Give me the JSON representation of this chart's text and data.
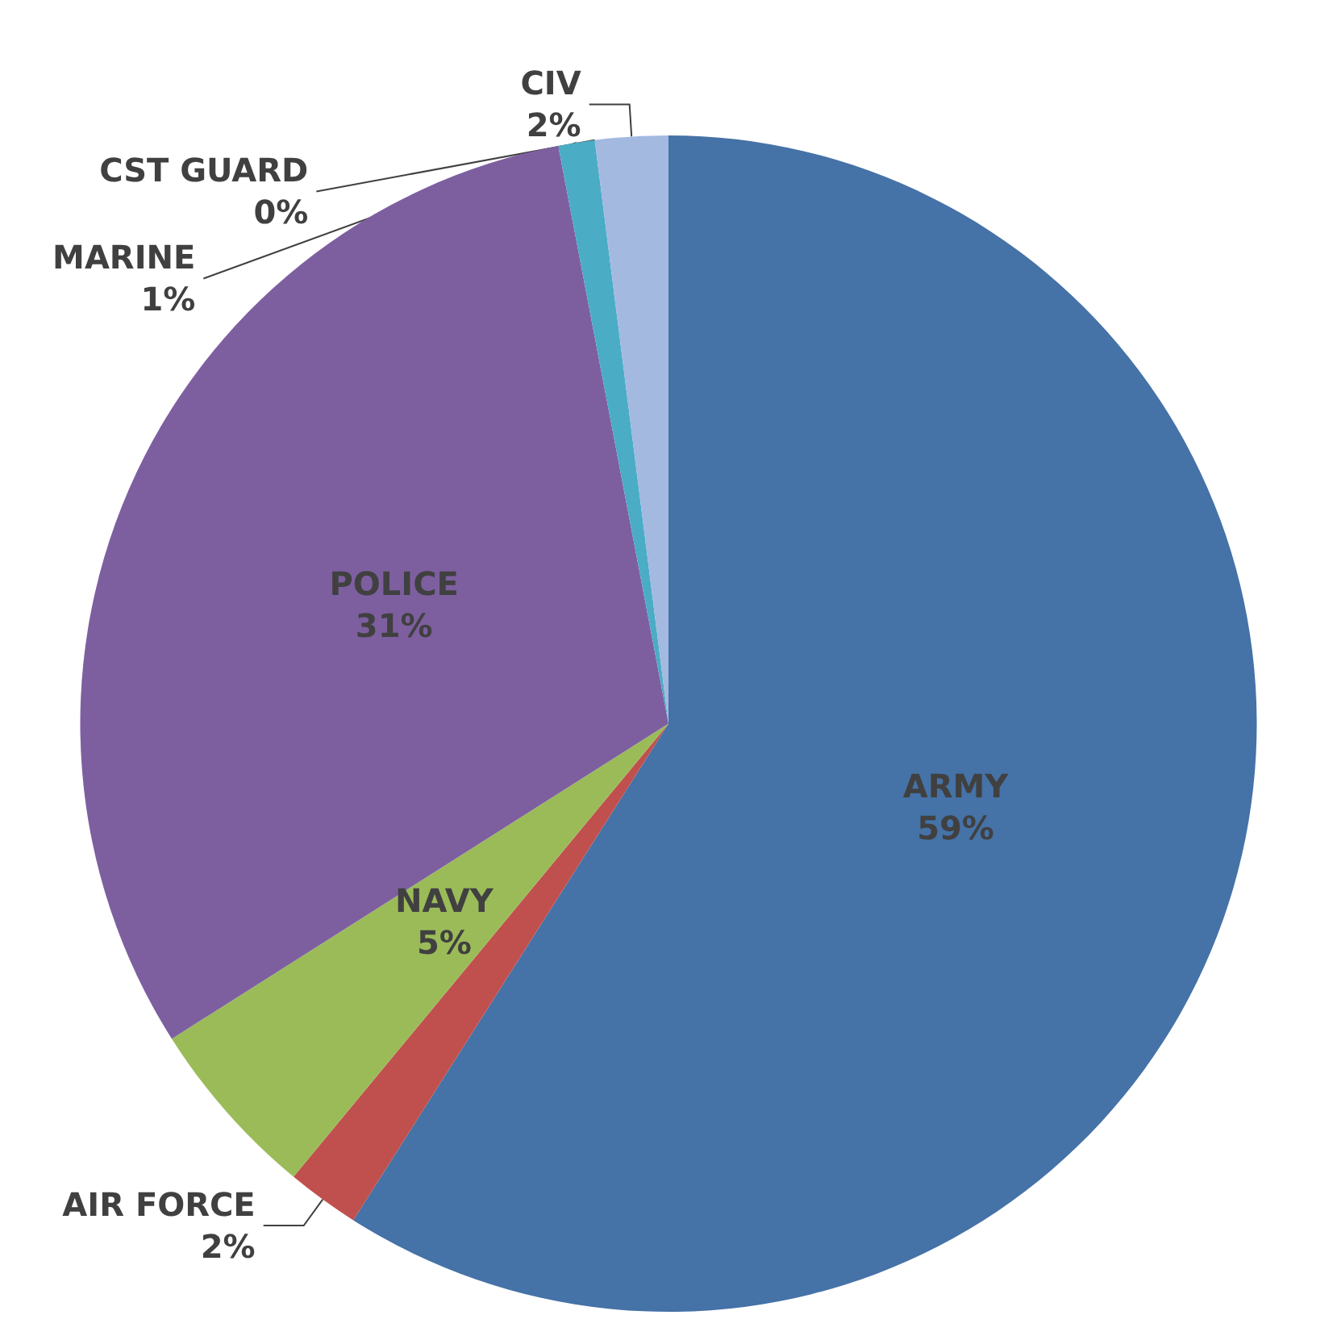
{
  "chart_data": {
    "type": "pie",
    "categories": [
      "ARMY",
      "AIR FORCE",
      "NAVY",
      "POLICE",
      "MARINE",
      "CST GUARD",
      "CIV"
    ],
    "values": [
      59,
      2,
      5,
      31,
      1,
      0,
      2
    ],
    "value_labels": [
      "59%",
      "2%",
      "5%",
      "31%",
      "1%",
      "0%",
      "2%"
    ],
    "colors": [
      "#4572a7",
      "#c0504d",
      "#9bbb59",
      "#7d5fa0",
      "#4bacc6",
      "#f79646",
      "#a3b9e0"
    ],
    "legend": false
  }
}
